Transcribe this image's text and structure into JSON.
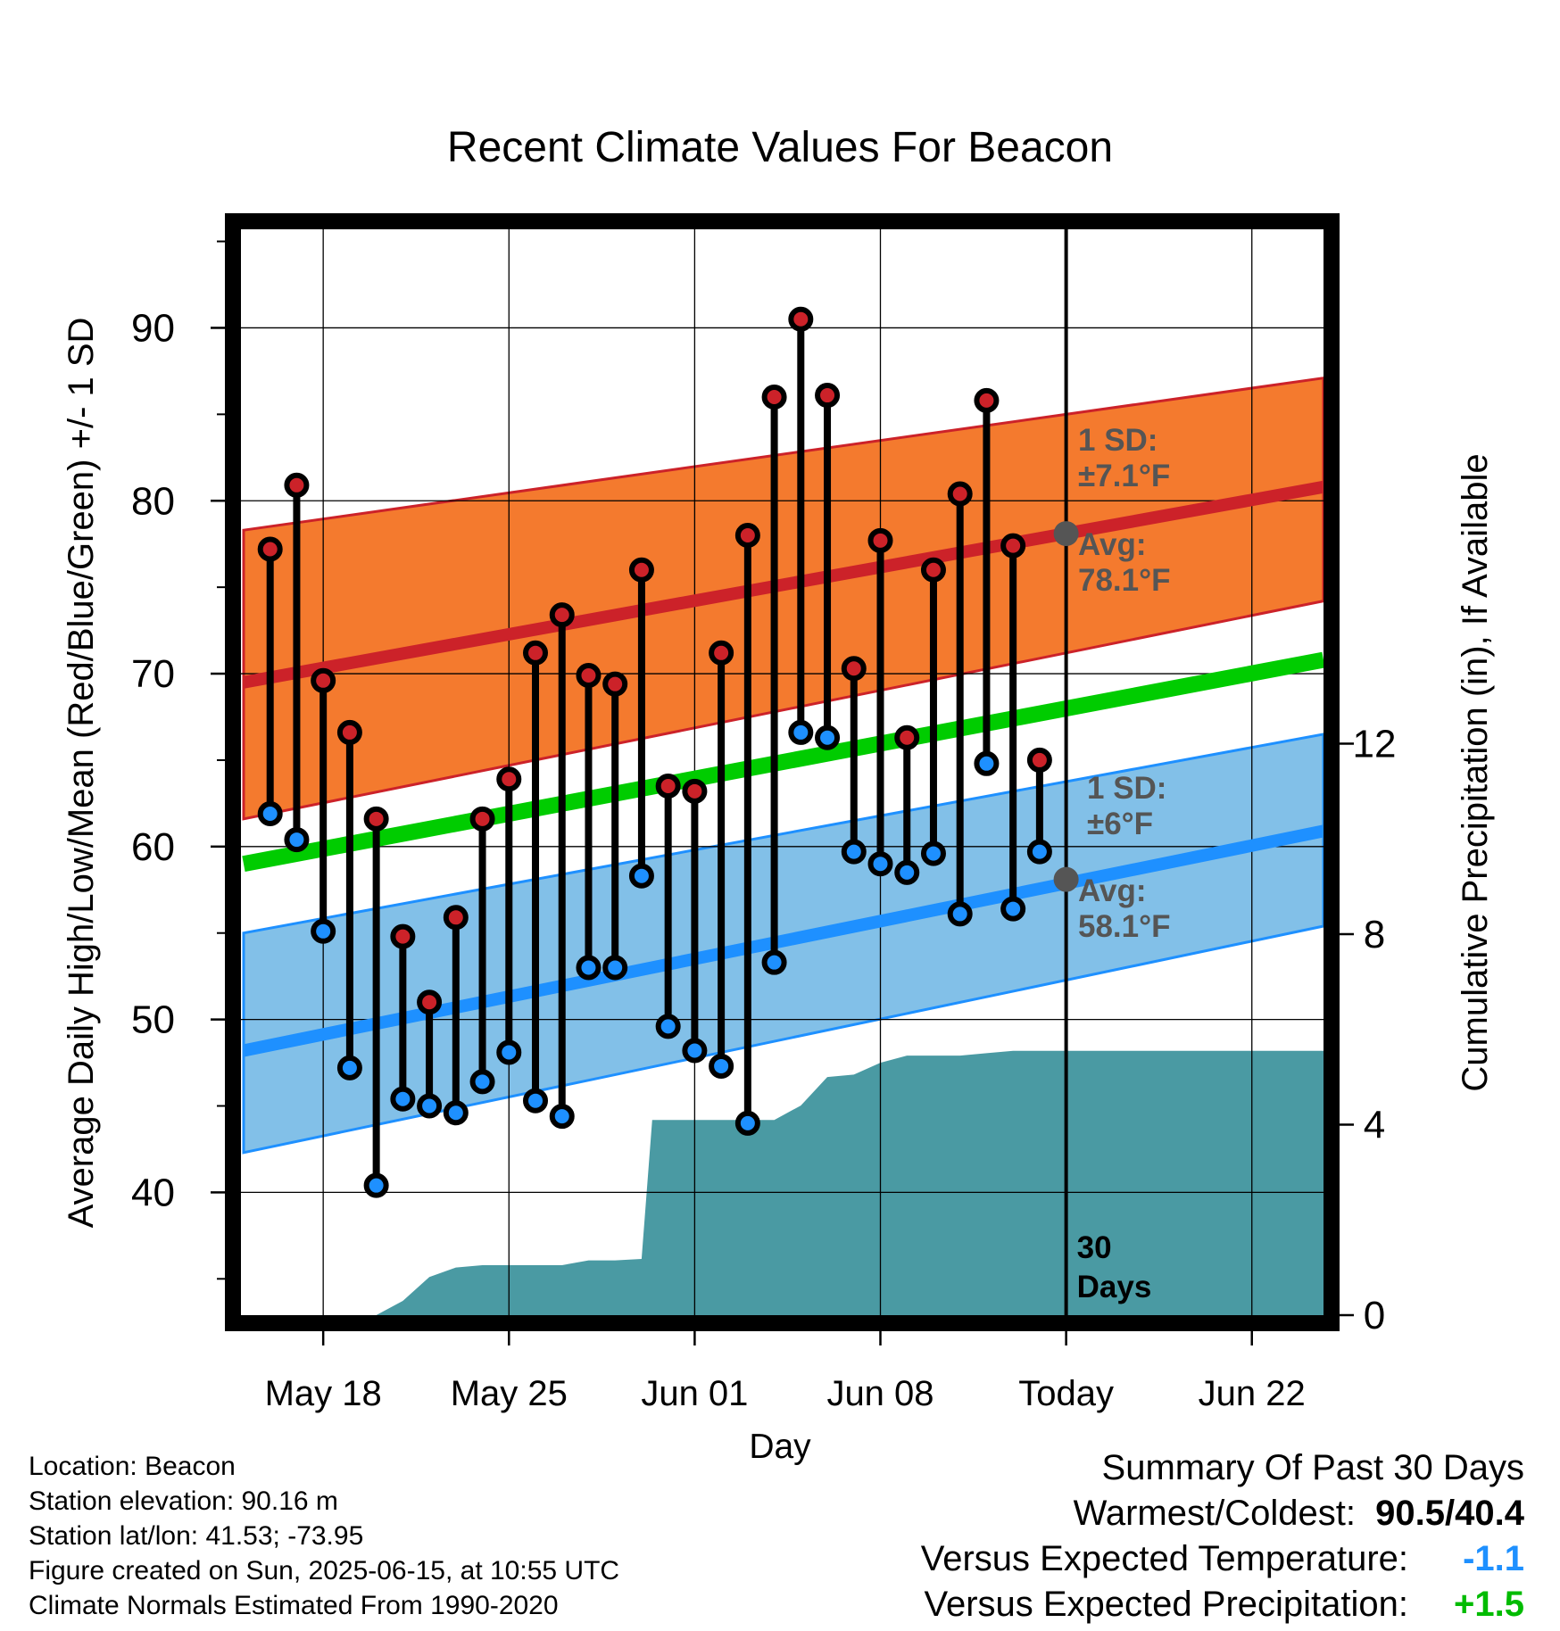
{
  "chart_data": {
    "type": "line",
    "title": "Recent Climate Values For Beacon",
    "xlabel": "Day",
    "ylabel": "Average Daily High/Low/Mean (Red/Blue/Green) +/- 1 SD",
    "y2label": "Cumulative Precipitation (in), If Available",
    "x_ticks": [
      "May 18",
      "May 25",
      "Jun 01",
      "Jun 08",
      "Today",
      "Jun 22"
    ],
    "x_tick_days": [
      18,
      25,
      32,
      39,
      46,
      53
    ],
    "xlim": [
      14.9,
      55.7
    ],
    "y_ticks": [
      40,
      50,
      60,
      70,
      80,
      90
    ],
    "ylim": [
      32.9,
      95.7
    ],
    "y2_ticks": [
      0,
      4,
      8,
      12
    ],
    "y2lim": [
      0,
      22.8
    ],
    "grid": true,
    "today_day": 46,
    "today_label": "30 Days",
    "normals": {
      "days": [
        15,
        55.7
      ],
      "high_avg": [
        69.5,
        80.8
      ],
      "high_upper": [
        78.3,
        87.1
      ],
      "high_lower": [
        61.6,
        74.2
      ],
      "low_avg": [
        48.2,
        60.9
      ],
      "low_upper": [
        55.0,
        66.5
      ],
      "low_lower": [
        42.3,
        55.4
      ],
      "mean": [
        59.0,
        70.8
      ]
    },
    "high_sd_label": [
      "1 SD:",
      "±7.1°F"
    ],
    "high_avg_label": [
      "Avg:",
      "78.1°F"
    ],
    "high_avg_today": 78.1,
    "low_sd_label": [
      "1 SD:",
      "±6°F"
    ],
    "low_avg_label": [
      "Avg:",
      "58.1°F"
    ],
    "low_avg_today": 58.1,
    "daily": {
      "days": [
        16,
        17,
        18,
        19,
        20,
        21,
        22,
        23,
        24,
        25,
        26,
        27,
        28,
        29,
        30,
        31,
        32,
        33,
        34,
        35,
        36,
        37,
        38,
        39,
        40,
        41,
        42,
        43,
        44,
        45
      ],
      "highs": [
        77.2,
        80.9,
        69.6,
        66.6,
        61.6,
        54.8,
        51.0,
        55.9,
        61.6,
        63.9,
        71.2,
        73.4,
        69.9,
        69.4,
        76.0,
        63.5,
        63.2,
        71.2,
        78.0,
        86.0,
        90.5,
        86.1,
        70.3,
        77.7,
        66.3,
        76.0,
        80.4,
        85.8,
        77.4,
        65.0
      ],
      "lows": [
        61.9,
        60.4,
        55.1,
        47.2,
        40.4,
        45.4,
        45.0,
        44.6,
        46.4,
        48.1,
        45.3,
        44.4,
        53.0,
        53.0,
        58.3,
        49.6,
        48.2,
        47.3,
        44.0,
        53.3,
        66.6,
        66.3,
        59.7,
        59.0,
        58.5,
        59.6,
        56.1,
        64.8,
        56.4,
        59.7
      ]
    },
    "precip": {
      "days": [
        15,
        17,
        18,
        19,
        20,
        21,
        22,
        23,
        24,
        25,
        26,
        27,
        28,
        29,
        30,
        30.4,
        31,
        32,
        33,
        34,
        35,
        36,
        37,
        38,
        39,
        40,
        41,
        42,
        43,
        44,
        45,
        46,
        55.7
      ],
      "cumulative": [
        0,
        0,
        0,
        0,
        0,
        0.3,
        0.8,
        1.0,
        1.05,
        1.05,
        1.05,
        1.05,
        1.15,
        1.15,
        1.18,
        4.1,
        4.1,
        4.1,
        4.1,
        4.1,
        4.1,
        4.4,
        5.0,
        5.05,
        5.3,
        5.45,
        5.45,
        5.45,
        5.5,
        5.55,
        5.55,
        5.55,
        5.55
      ]
    }
  },
  "colors": {
    "high_band": "#f47a2e",
    "high_line": "#cc2229",
    "low_band": "#82c0e8",
    "low_line": "#1e90ff",
    "mean_line": "#00cc00",
    "precip_fill": "#4a9aa3",
    "high_marker": "#cc2229",
    "low_marker": "#1e90ff",
    "sd_label": "#555555",
    "temp_delta": "#1e90ff",
    "precip_delta": "#00bb00"
  },
  "info": {
    "location": "Location: Beacon",
    "elevation": "Station elevation: 90.16 m",
    "latlon": "Station lat/lon: 41.53; -73.95",
    "created": "Figure created on Sun, 2025-06-15, at 10:55 UTC",
    "normals": "Climate Normals Estimated From 1990-2020"
  },
  "summary": {
    "title": "Summary Of Past 30 Days",
    "warmest_label": "Warmest/Coldest:",
    "warmest_value": "90.5/40.4",
    "temp_label": "Versus Expected Temperature:",
    "temp_value": "-1.1",
    "precip_label": "Versus Expected Precipitation:",
    "precip_value": "+1.5"
  }
}
